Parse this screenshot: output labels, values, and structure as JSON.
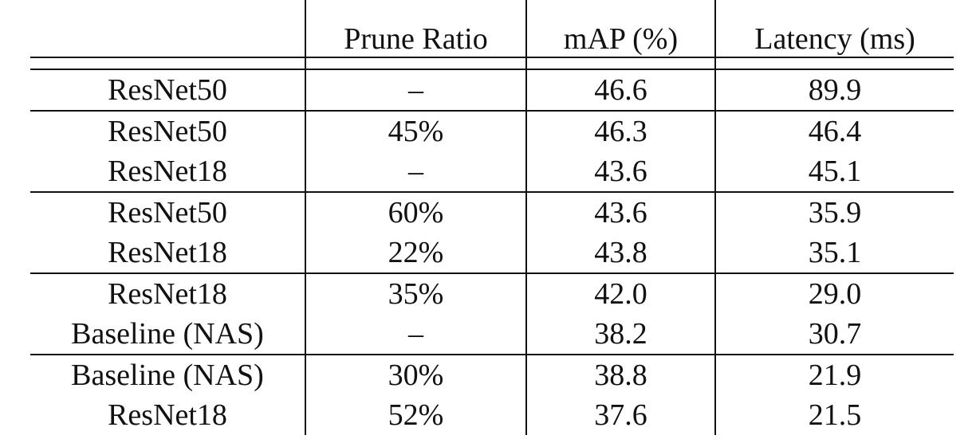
{
  "table": {
    "headers": [
      "",
      "Prune Ratio",
      "mAP (%)",
      "Latency (ms)"
    ],
    "groups": [
      [
        {
          "model": "ResNet50",
          "prune_ratio": "–",
          "map": "46.6",
          "latency": "89.9"
        }
      ],
      [
        {
          "model": "ResNet50",
          "prune_ratio": "45%",
          "map": "46.3",
          "latency": "46.4"
        },
        {
          "model": "ResNet18",
          "prune_ratio": "–",
          "map": "43.6",
          "latency": "45.1"
        }
      ],
      [
        {
          "model": "ResNet50",
          "prune_ratio": "60%",
          "map": "43.6",
          "latency": "35.9"
        },
        {
          "model": "ResNet18",
          "prune_ratio": "22%",
          "map": "43.8",
          "latency": "35.1"
        }
      ],
      [
        {
          "model": "ResNet18",
          "prune_ratio": "35%",
          "map": "42.0",
          "latency": "29.0"
        },
        {
          "model": "Baseline (NAS)",
          "prune_ratio": "–",
          "map": "38.2",
          "latency": "30.7"
        }
      ],
      [
        {
          "model": "Baseline (NAS)",
          "prune_ratio": "30%",
          "map": "38.8",
          "latency": "21.9"
        },
        {
          "model": "ResNet18",
          "prune_ratio": "52%",
          "map": "37.6",
          "latency": "21.5"
        }
      ]
    ]
  }
}
